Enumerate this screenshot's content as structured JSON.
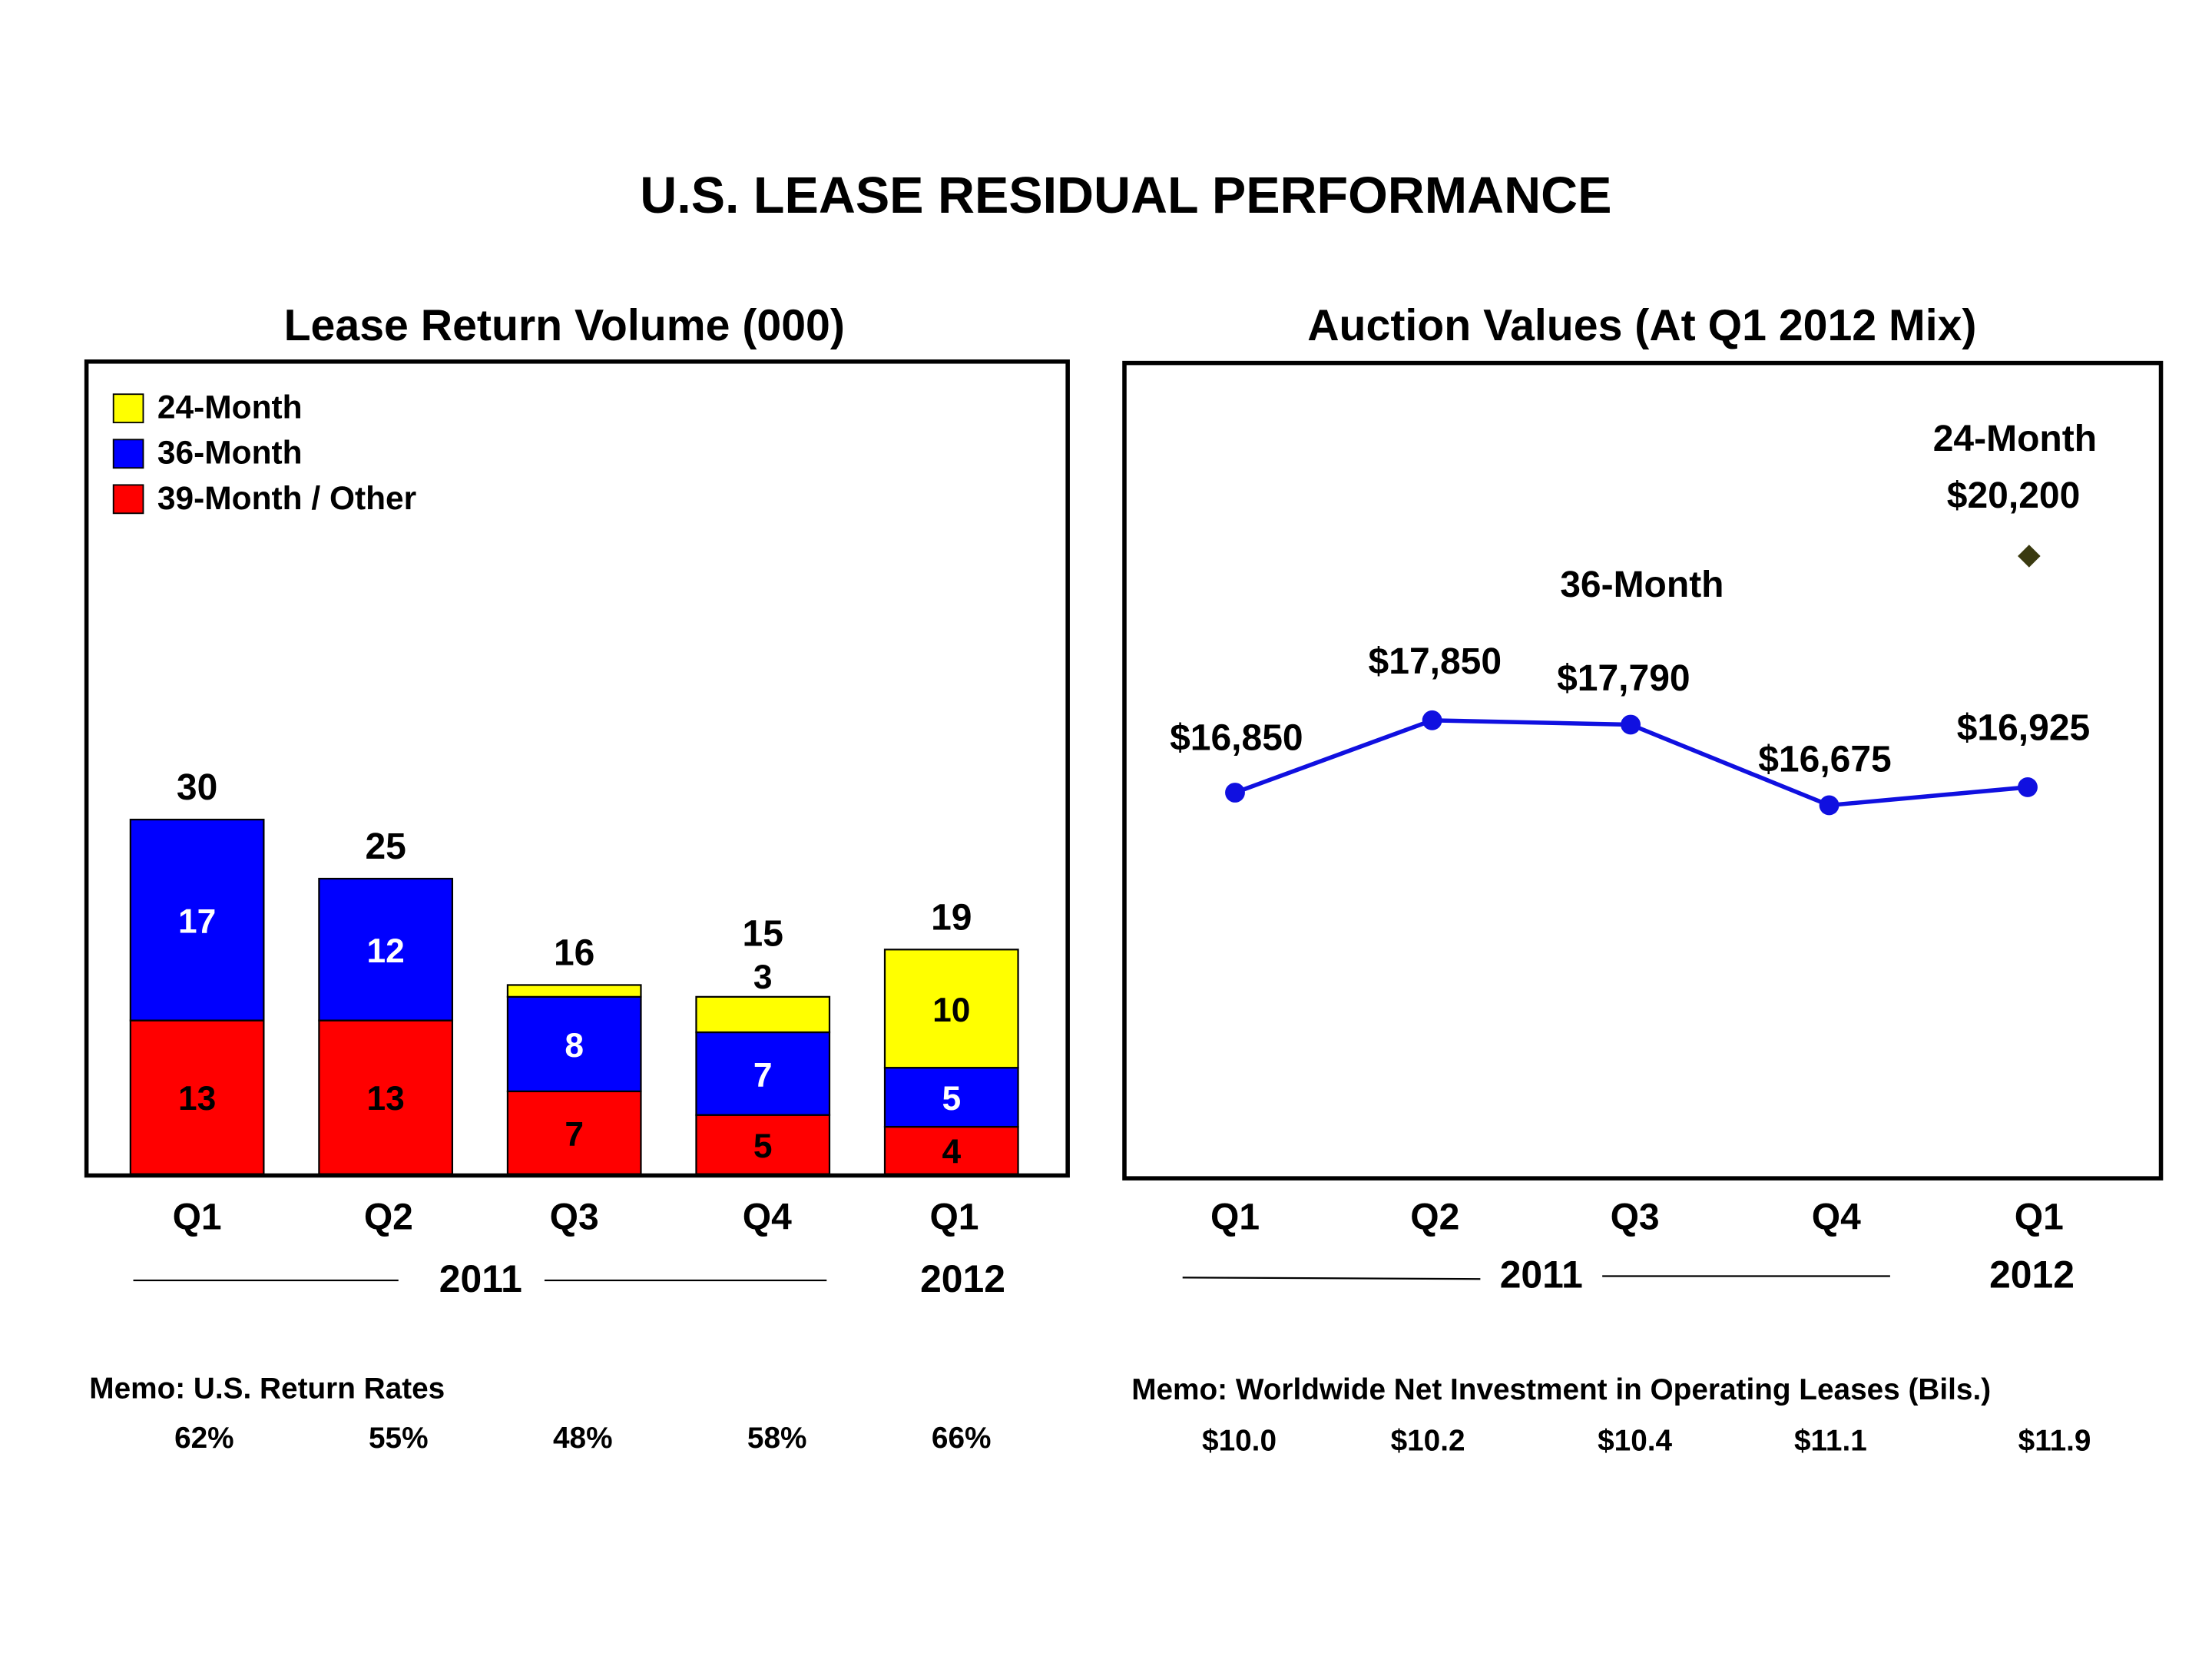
{
  "title": "U.S. LEASE RESIDUAL PERFORMANCE",
  "colors": {
    "m24": "#ffff00",
    "m36": "#0000ff",
    "m39": "#ff0000",
    "line": "#1010e0",
    "diamond": "#3a3a10"
  },
  "chart_data": [
    {
      "type": "bar",
      "stacked": true,
      "title": "Lease Return Volume (000)",
      "categories": [
        "Q1",
        "Q2",
        "Q3",
        "Q4",
        "Q1"
      ],
      "years": [
        {
          "label": "2011"
        },
        {
          "label": "2012"
        }
      ],
      "series": [
        {
          "name": "39-Month / Other",
          "color_key": "m39",
          "values": [
            13,
            13,
            7,
            5,
            4
          ],
          "labels": [
            "13",
            "13",
            "7",
            "5",
            "4"
          ],
          "label_color": "#000"
        },
        {
          "name": "36-Month",
          "color_key": "m36",
          "values": [
            17,
            12,
            8,
            7,
            5
          ],
          "labels": [
            "17",
            "12",
            "8",
            "7",
            "5"
          ],
          "label_color": "#fff"
        },
        {
          "name": "24-Month",
          "color_key": "m24",
          "values": [
            0,
            0,
            1,
            3,
            10
          ],
          "labels": [
            null,
            null,
            null,
            "3",
            "10"
          ],
          "label_color": "#000"
        }
      ],
      "totals": [
        "30",
        "25",
        "16",
        "15",
        "19"
      ],
      "legend": [
        "24-Month",
        "36-Month",
        "39-Month / Other"
      ],
      "legend_placement": "top-left",
      "ylim": [
        0,
        69
      ],
      "grid": false
    },
    {
      "type": "line",
      "title": "Auction Values (At Q1 2012 Mix)",
      "categories": [
        "Q1",
        "Q2",
        "Q3",
        "Q4",
        "Q1"
      ],
      "years": [
        {
          "label": "2011"
        },
        {
          "label": "2012"
        }
      ],
      "series": [
        {
          "name": "36-Month",
          "values": [
            16850,
            17850,
            17790,
            16675,
            16925
          ],
          "labels": [
            "$16,850",
            "$17,850",
            "$17,790",
            "$16,675",
            "$16,925"
          ]
        },
        {
          "name": "24-Month",
          "values": [
            null,
            null,
            null,
            null,
            20200
          ],
          "labels": [
            "$20,200"
          ],
          "marker": "diamond"
        }
      ],
      "ylim": [
        11500,
        22800
      ],
      "grid": false
    }
  ],
  "memo_left": {
    "label": "Memo:  U.S. Return Rates",
    "values": [
      "62%",
      "55%",
      "48%",
      "58%",
      "66%"
    ]
  },
  "memo_right": {
    "label": "Memo:  Worldwide Net Investment in Operating Leases (Bils.)",
    "values": [
      "$10.0",
      "$10.2",
      "$10.4",
      "$11.1",
      "$11.9"
    ]
  }
}
